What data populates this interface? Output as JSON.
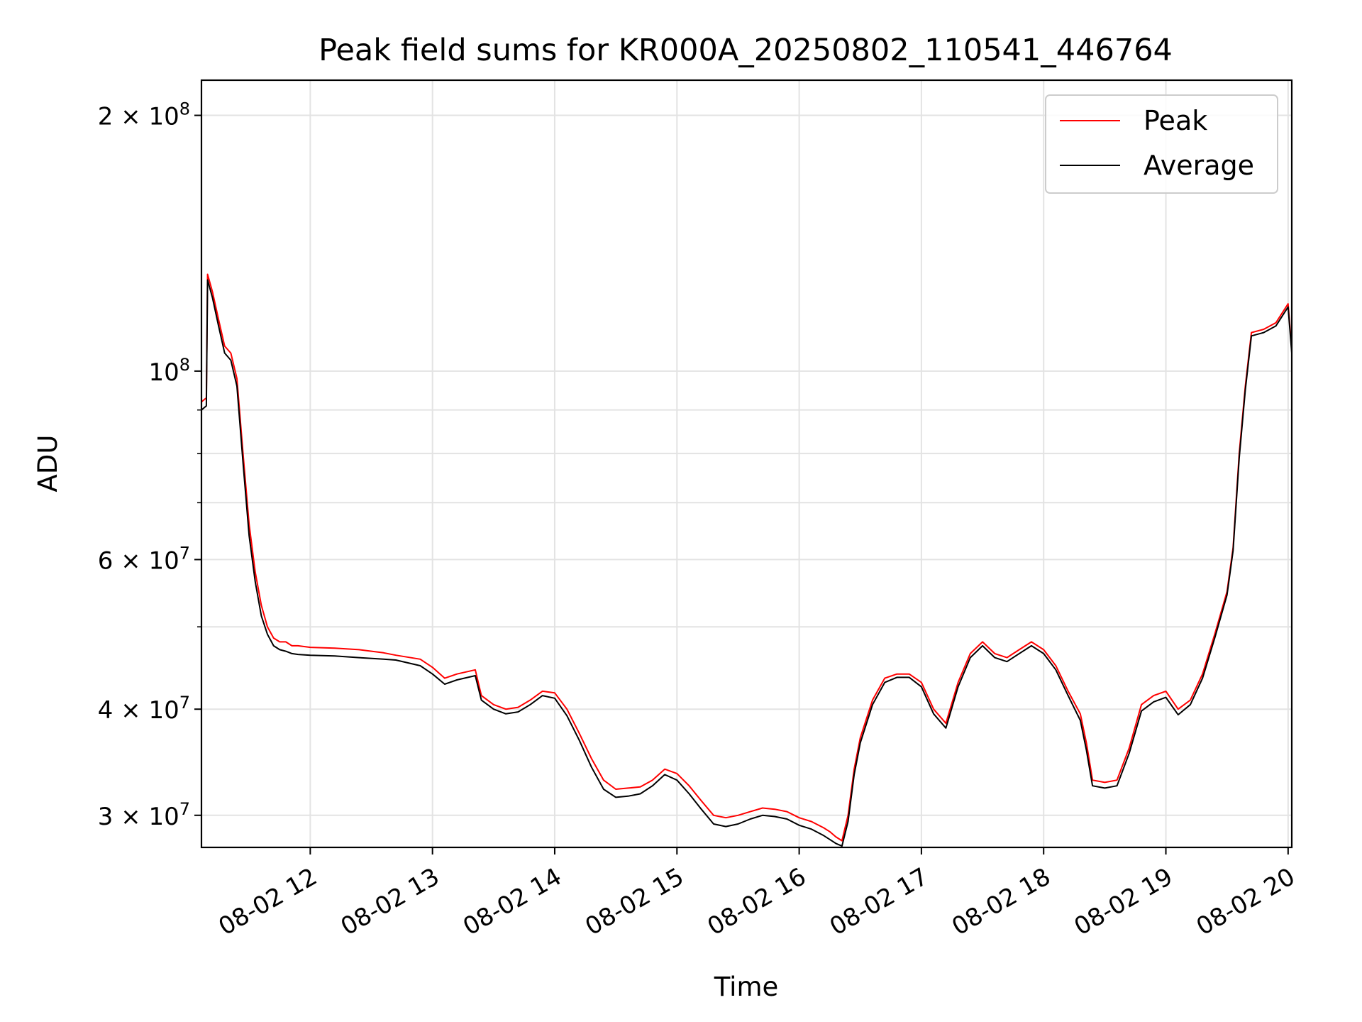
{
  "chart_data": {
    "type": "line",
    "title": "Peak field sums for KR000A_20250802_110541_446764",
    "xlabel": "Time",
    "ylabel": "ADU",
    "x_unit": "hours on 2025-08-02",
    "xlim": [
      11.11,
      20.03
    ],
    "ylim": [
      27500000,
      220000000
    ],
    "yscale": "log",
    "grid": true,
    "legend_position": "top-right",
    "x_ticks": [
      {
        "value": 12,
        "label": "08-02 12"
      },
      {
        "value": 13,
        "label": "08-02 13"
      },
      {
        "value": 14,
        "label": "08-02 14"
      },
      {
        "value": 15,
        "label": "08-02 15"
      },
      {
        "value": 16,
        "label": "08-02 16"
      },
      {
        "value": 17,
        "label": "08-02 17"
      },
      {
        "value": 18,
        "label": "08-02 18"
      },
      {
        "value": 19,
        "label": "08-02 19"
      },
      {
        "value": 20,
        "label": "08-02 20"
      }
    ],
    "y_ticks": [
      {
        "value": 30000000,
        "base": "3 × 10",
        "exp": "7"
      },
      {
        "value": 40000000,
        "base": "4 × 10",
        "exp": "7"
      },
      {
        "value": 60000000,
        "base": "6 × 10",
        "exp": "7"
      },
      {
        "value": 100000000,
        "base": "10",
        "exp": "8"
      },
      {
        "value": 200000000,
        "base": "2 × 10",
        "exp": "8"
      }
    ],
    "y_minor_ticks": [
      50000000,
      70000000,
      80000000,
      90000000
    ],
    "colors": {
      "peak": "#ff0000",
      "average": "#000000"
    },
    "series": [
      {
        "name": "Peak",
        "x": [
          11.11,
          11.15,
          11.16,
          11.2,
          11.25,
          11.3,
          11.35,
          11.4,
          11.45,
          11.5,
          11.55,
          11.6,
          11.65,
          11.7,
          11.75,
          11.8,
          11.85,
          11.9,
          12.0,
          12.2,
          12.4,
          12.6,
          12.7,
          12.9,
          13.0,
          13.1,
          13.2,
          13.35,
          13.4,
          13.5,
          13.6,
          13.7,
          13.8,
          13.9,
          14.0,
          14.1,
          14.2,
          14.3,
          14.4,
          14.5,
          14.6,
          14.7,
          14.8,
          14.9,
          15.0,
          15.1,
          15.2,
          15.3,
          15.4,
          15.5,
          15.6,
          15.7,
          15.8,
          15.9,
          16.0,
          16.1,
          16.2,
          16.25,
          16.3,
          16.35,
          16.4,
          16.45,
          16.5,
          16.6,
          16.7,
          16.8,
          16.9,
          17.0,
          17.1,
          17.2,
          17.3,
          17.4,
          17.5,
          17.6,
          17.7,
          17.8,
          17.9,
          18.0,
          18.1,
          18.2,
          18.3,
          18.35,
          18.4,
          18.5,
          18.6,
          18.7,
          18.8,
          18.9,
          19.0,
          19.1,
          19.2,
          19.3,
          19.4,
          19.5,
          19.55,
          19.6,
          19.65,
          19.7,
          19.8,
          19.9,
          20.0,
          20.03
        ],
        "y": [
          92000000,
          93000000,
          130000000,
          124000000,
          115000000,
          107000000,
          105000000,
          98000000,
          80000000,
          66000000,
          58000000,
          53000000,
          50000000,
          48500000,
          48000000,
          48000000,
          47500000,
          47500000,
          47300000,
          47200000,
          47000000,
          46600000,
          46300000,
          45800000,
          44800000,
          43500000,
          44000000,
          44500000,
          41500000,
          40500000,
          40000000,
          40200000,
          41000000,
          42000000,
          41800000,
          40000000,
          37500000,
          35000000,
          33000000,
          32200000,
          32300000,
          32400000,
          33000000,
          34000000,
          33600000,
          32500000,
          31200000,
          30000000,
          29800000,
          30000000,
          30300000,
          30600000,
          30500000,
          30300000,
          29800000,
          29500000,
          29000000,
          28700000,
          28300000,
          28000000,
          30000000,
          34000000,
          37000000,
          41000000,
          43500000,
          44000000,
          44000000,
          43000000,
          40000000,
          38500000,
          43000000,
          46500000,
          48000000,
          46500000,
          46000000,
          47000000,
          48000000,
          47000000,
          45000000,
          42000000,
          39500000,
          36500000,
          33000000,
          32800000,
          33000000,
          36000000,
          40500000,
          41500000,
          42000000,
          40000000,
          41000000,
          44000000,
          49000000,
          55000000,
          62000000,
          80000000,
          96000000,
          111000000,
          112000000,
          114000000,
          120000000,
          106000000
        ]
      },
      {
        "name": "Average",
        "x": [
          11.11,
          11.15,
          11.16,
          11.2,
          11.25,
          11.3,
          11.35,
          11.4,
          11.45,
          11.5,
          11.55,
          11.6,
          11.65,
          11.7,
          11.75,
          11.8,
          11.85,
          11.9,
          12.0,
          12.2,
          12.4,
          12.6,
          12.7,
          12.9,
          13.0,
          13.1,
          13.2,
          13.35,
          13.4,
          13.5,
          13.6,
          13.7,
          13.8,
          13.9,
          14.0,
          14.1,
          14.2,
          14.3,
          14.4,
          14.5,
          14.6,
          14.7,
          14.8,
          14.9,
          15.0,
          15.1,
          15.2,
          15.3,
          15.4,
          15.5,
          15.6,
          15.7,
          15.8,
          15.9,
          16.0,
          16.1,
          16.2,
          16.25,
          16.3,
          16.35,
          16.4,
          16.45,
          16.5,
          16.6,
          16.7,
          16.8,
          16.9,
          17.0,
          17.1,
          17.2,
          17.3,
          17.4,
          17.5,
          17.6,
          17.7,
          17.8,
          17.9,
          18.0,
          18.1,
          18.2,
          18.3,
          18.35,
          18.4,
          18.5,
          18.6,
          18.7,
          18.8,
          18.9,
          19.0,
          19.1,
          19.2,
          19.3,
          19.4,
          19.5,
          19.55,
          19.6,
          19.65,
          19.7,
          19.8,
          19.9,
          20.0,
          20.03
        ],
        "y": [
          90000000,
          91000000,
          128000000,
          122000000,
          113000000,
          105000000,
          103000000,
          96000000,
          78000000,
          64000000,
          56500000,
          51500000,
          49000000,
          47500000,
          47000000,
          46800000,
          46500000,
          46400000,
          46300000,
          46200000,
          46000000,
          45800000,
          45700000,
          45000000,
          44000000,
          42800000,
          43300000,
          43800000,
          41000000,
          40000000,
          39500000,
          39700000,
          40500000,
          41500000,
          41200000,
          39300000,
          36800000,
          34200000,
          32200000,
          31500000,
          31600000,
          31800000,
          32500000,
          33500000,
          33000000,
          31800000,
          30500000,
          29300000,
          29100000,
          29300000,
          29700000,
          30000000,
          29900000,
          29700000,
          29200000,
          28900000,
          28400000,
          28100000,
          27800000,
          27600000,
          29500000,
          33500000,
          36500000,
          40500000,
          43000000,
          43600000,
          43600000,
          42500000,
          39500000,
          38000000,
          42500000,
          46000000,
          47500000,
          46000000,
          45500000,
          46500000,
          47500000,
          46500000,
          44500000,
          41500000,
          38800000,
          35800000,
          32500000,
          32300000,
          32500000,
          35500000,
          39800000,
          40800000,
          41300000,
          39400000,
          40500000,
          43500000,
          48500000,
          54500000,
          61500000,
          79000000,
          95000000,
          110000000,
          111000000,
          113000000,
          119000000,
          105000000
        ]
      }
    ]
  }
}
